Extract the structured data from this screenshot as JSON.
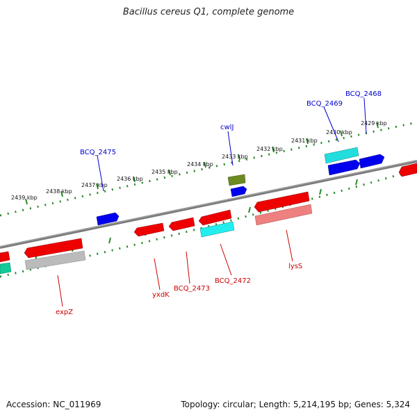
{
  "title": "Bacillus cereus Q1, complete genome",
  "footer": {
    "accession": "Accession: NC_011969",
    "summary": "Topology: circular; Length: 5,214,195 bp; Genes: 5,324"
  },
  "colors": {
    "backbone": "#7a7a7a",
    "tick": "#2a8a2a",
    "label_forward": "#0000cc",
    "label_reverse": "#cc0000",
    "forward_gene": "#0000ee",
    "reverse_gene": "#ee0000",
    "cyan": "#22dddd",
    "olive": "#6b8a22",
    "pink": "#ee8080",
    "gray": "#bbbbbb",
    "teal": "#11cc99"
  },
  "scale_labels": [
    "2429 kbp",
    "2430 kbp",
    "2431 kbp",
    "2432 kbp",
    "2433 kbp",
    "2434 kbp",
    "2435 kbp",
    "2436 kbp",
    "2437 kbp",
    "2438 kbp",
    "2439 kbp"
  ],
  "gene_labels": {
    "forward": [
      "BCQ_2468",
      "BCQ_2469",
      "cwlJ",
      "BCQ_2475"
    ],
    "reverse": [
      "lysS",
      "BCQ_2472",
      "BCQ_2473",
      "yxdK",
      "expZ"
    ]
  }
}
